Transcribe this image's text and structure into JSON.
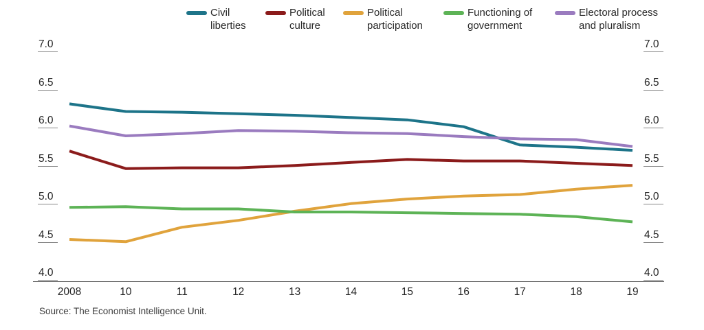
{
  "legend": {
    "items": [
      {
        "line1": "Civil",
        "line2": "liberties",
        "color": "#1d7489"
      },
      {
        "line1": "Political",
        "line2": "culture",
        "color": "#8b1b1b"
      },
      {
        "line1": "Political",
        "line2": "participation",
        "color": "#e0a33c"
      },
      {
        "line1": "Functioning of",
        "line2": "government",
        "color": "#5db356"
      },
      {
        "line1": "Electoral process",
        "line2": "and pluralism",
        "color": "#9a7bbf"
      }
    ]
  },
  "chart_data": {
    "type": "line",
    "x_labels": [
      "2008",
      "10",
      "11",
      "12",
      "13",
      "14",
      "15",
      "16",
      "17",
      "18",
      "19"
    ],
    "y_ticks": [
      "7.0",
      "6.5",
      "6.0",
      "5.5",
      "5.0",
      "4.5",
      "4.0"
    ],
    "ylim": [
      4.0,
      7.0
    ],
    "grid": "tick-underline-marks-both-sides, baseline at 4.0 only",
    "legend_position": "top",
    "series": [
      {
        "name": "Civil liberties",
        "color": "#1d7489",
        "values": [
          6.33,
          6.23,
          6.22,
          6.2,
          6.18,
          6.15,
          6.12,
          6.03,
          5.79,
          5.76,
          5.72
        ]
      },
      {
        "name": "Political culture",
        "color": "#8b1b1b",
        "values": [
          5.71,
          5.48,
          5.49,
          5.49,
          5.52,
          5.56,
          5.6,
          5.58,
          5.58,
          5.55,
          5.52
        ]
      },
      {
        "name": "Political participation",
        "color": "#e0a33c",
        "values": [
          4.55,
          4.52,
          4.71,
          4.8,
          4.92,
          5.02,
          5.08,
          5.12,
          5.14,
          5.21,
          5.26
        ]
      },
      {
        "name": "Functioning of government",
        "color": "#5db356",
        "values": [
          4.97,
          4.98,
          4.95,
          4.95,
          4.91,
          4.91,
          4.9,
          4.89,
          4.88,
          4.85,
          4.78
        ]
      },
      {
        "name": "Electoral process and pluralism",
        "color": "#9a7bbf",
        "values": [
          6.04,
          5.91,
          5.94,
          5.98,
          5.97,
          5.95,
          5.94,
          5.9,
          5.87,
          5.86,
          5.77
        ]
      }
    ]
  },
  "source": {
    "text": "Source: The Economist Intelligence Unit."
  }
}
